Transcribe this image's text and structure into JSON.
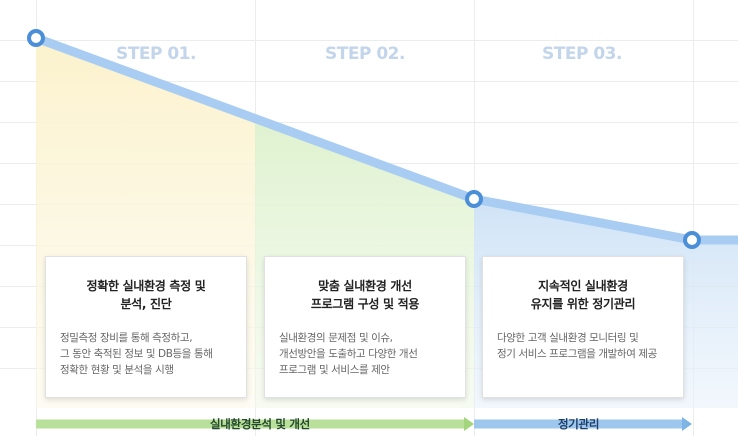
{
  "steps": [
    {
      "step_label": "STEP 01.",
      "title": "정확한 실내환경 측정 및\n분석, 진단",
      "description": "정밀측정 장비를 통해 측정하고,\n그 동안 축적된 정보 및 DB등을 통해\n정확한 현황 및 분석을 시행"
    },
    {
      "step_label": "STEP 02.",
      "title": "맞춤 실내환경 개선\n프로그램 구성 및 적용",
      "description": "실내환경의 문제점 및 이슈,\n개선방안을 도출하고 다양한 개선\n프로그램 및 서비스를 제안"
    },
    {
      "step_label": "STEP 03.",
      "title": "지속적인 실내환경\n유지를 위한 정기관리",
      "description": "다양한 고객 실내환경 모니터링 및\n정기 서비스 프로그램을 개발하여 제공"
    }
  ],
  "phases": [
    {
      "label": "실내환경분석 및 개선",
      "color": "#b9e09a"
    },
    {
      "label": "정기관리",
      "color": "#9ec7ee"
    }
  ],
  "colors": {
    "line": "#a9cdf2",
    "point_fill": "#ffffff",
    "point_stroke": "#4a8fd8",
    "area_step1": "#fbf2cc",
    "area_step2": "#dff2cf",
    "area_step3": "#cfe3f6",
    "step_label": "#c3d5ea"
  }
}
